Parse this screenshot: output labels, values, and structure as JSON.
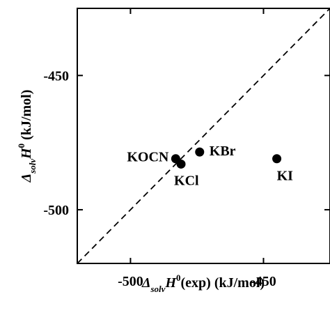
{
  "chart_data": {
    "type": "scatter",
    "title": "",
    "xlim": [
      -520,
      -425
    ],
    "ylim": [
      -520,
      -425
    ],
    "x_ticks": [
      -500,
      -450
    ],
    "y_ticks": [
      -500,
      -450
    ],
    "x_tick_labels": [
      "-500",
      "-450"
    ],
    "y_tick_labels": [
      "-500",
      "-450"
    ],
    "xlabel": {
      "main": "Δ",
      "sub": "solv",
      "mid": "H",
      "sup": "0",
      "tail": "(exp) (kJ/mol)"
    },
    "ylabel": {
      "main": "Δ",
      "sub": "solv",
      "mid": "H",
      "sup": "0",
      "tail": " (kJ/mol)"
    },
    "grid": false,
    "reference_line": {
      "style": "dashed",
      "relation": "y = x"
    },
    "points": [
      {
        "label": "KOCN",
        "x": -483.0,
        "y": -481.0
      },
      {
        "label": "KCl",
        "x": -481.0,
        "y": -483.0
      },
      {
        "label": "KBr",
        "x": -474.0,
        "y": -478.5
      },
      {
        "label": "KI",
        "x": -445.0,
        "y": -481.0
      }
    ]
  },
  "colors": {
    "marker": "#000000",
    "axis": "#000000",
    "background": "#ffffff"
  }
}
